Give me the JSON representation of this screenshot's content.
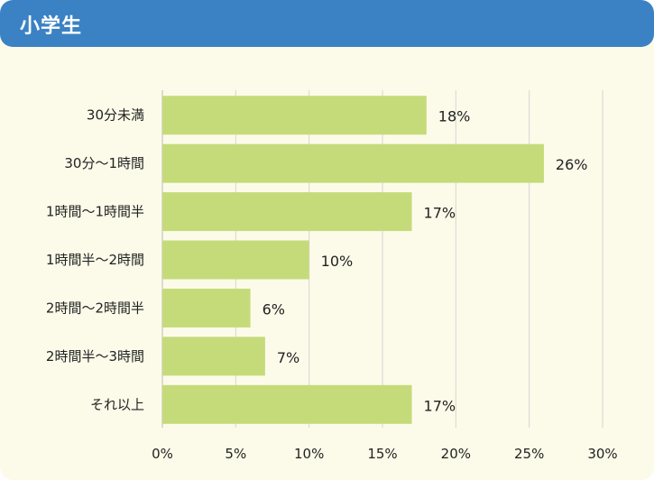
{
  "header": {
    "title": "小学生"
  },
  "colors": {
    "header": "#3b82c4",
    "bar": "#c5db7a",
    "background": "#fcfbe9",
    "grid": "#d5d5d5"
  },
  "chart_data": {
    "type": "bar",
    "orientation": "horizontal",
    "categories": [
      "30分未満",
      "30分～1時間",
      "1時間～1時間半",
      "1時間半～2時間",
      "2時間～2時間半",
      "2時間半～3時間",
      "それ以上"
    ],
    "values": [
      18,
      26,
      17,
      10,
      6,
      7,
      17
    ],
    "value_labels": [
      "18%",
      "26%",
      "17%",
      "10%",
      "6%",
      "7%",
      "17%"
    ],
    "x_ticks": [
      "0%",
      "5%",
      "10%",
      "15%",
      "20%",
      "25%",
      "30%"
    ],
    "xlim": [
      0,
      30
    ],
    "grid": true
  }
}
